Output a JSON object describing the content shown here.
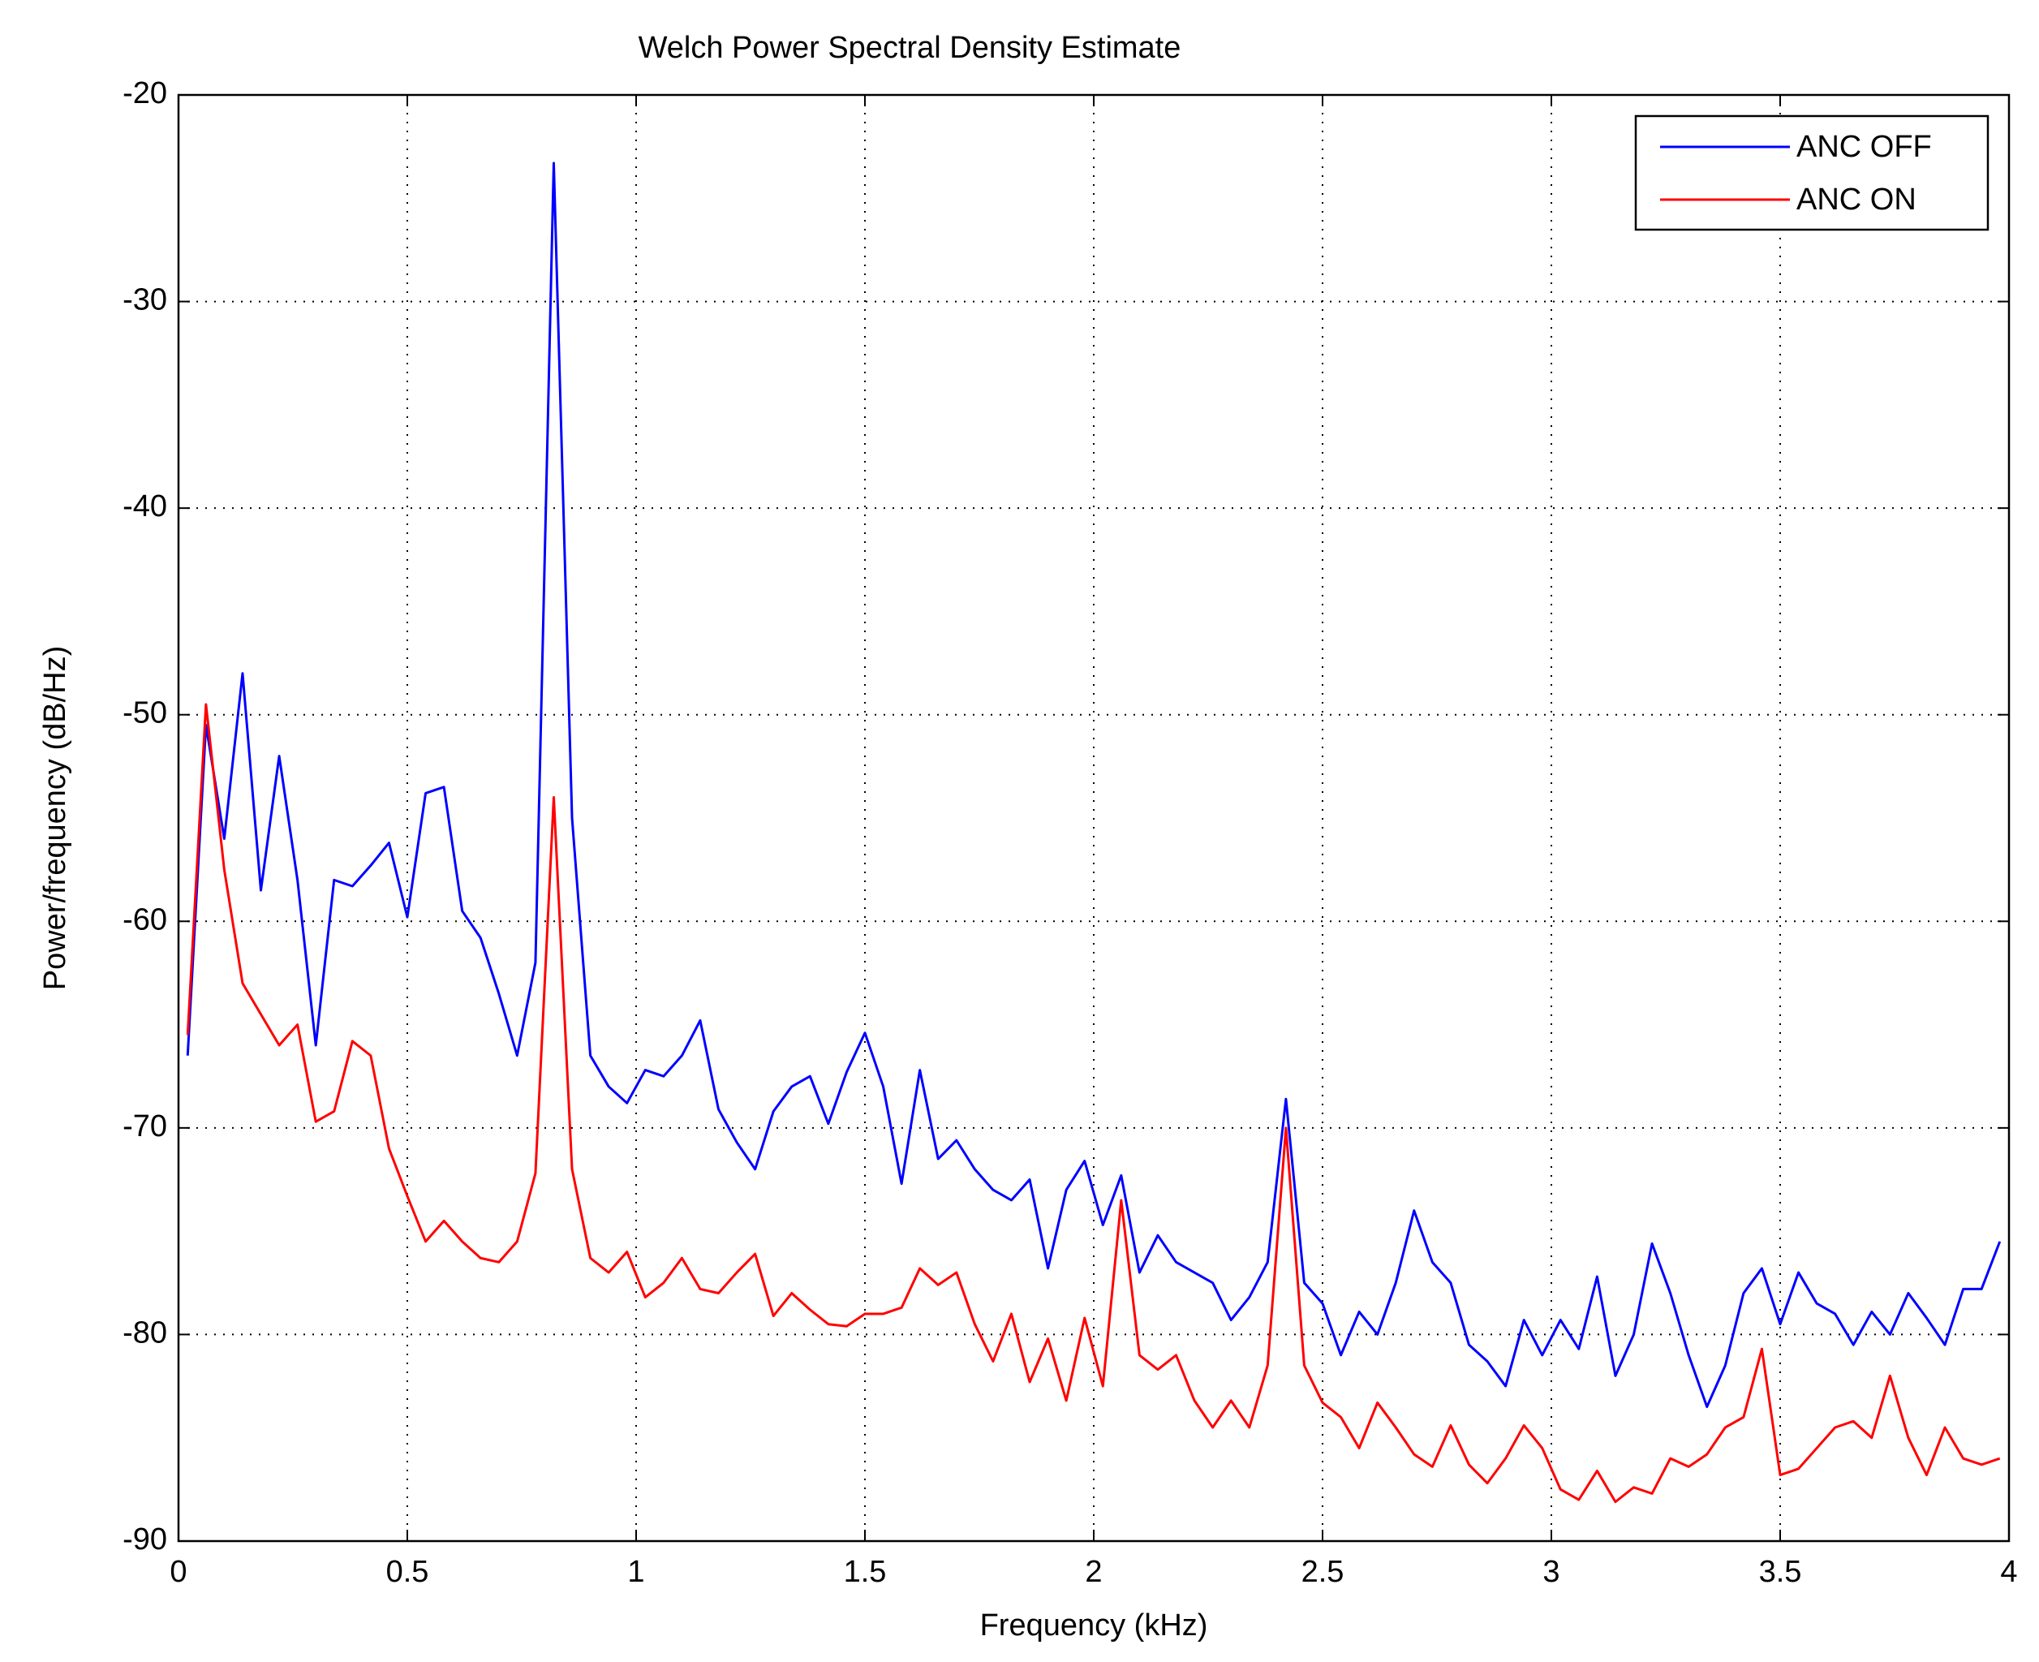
{
  "chart_data": {
    "type": "line",
    "title": "Welch Power Spectral Density Estimate",
    "x_label": "Frequency (kHz)",
    "y_label": "Power/frequency (dB/Hz)",
    "x": [
      0.02,
      0.06,
      0.1,
      0.14,
      0.18,
      0.22,
      0.26,
      0.3,
      0.34,
      0.38,
      0.42,
      0.46,
      0.5,
      0.54,
      0.58,
      0.62,
      0.66,
      0.7,
      0.74,
      0.78,
      0.82,
      0.86,
      0.9,
      0.94,
      0.98,
      1.02,
      1.06,
      1.1,
      1.14,
      1.18,
      1.22,
      1.26,
      1.3,
      1.34,
      1.38,
      1.42,
      1.46,
      1.5,
      1.54,
      1.58,
      1.62,
      1.66,
      1.7,
      1.74,
      1.78,
      1.82,
      1.86,
      1.9,
      1.94,
      1.98,
      2.02,
      2.06,
      2.1,
      2.14,
      2.18,
      2.22,
      2.26,
      2.3,
      2.34,
      2.38,
      2.42,
      2.46,
      2.5,
      2.54,
      2.58,
      2.62,
      2.66,
      2.7,
      2.74,
      2.78,
      2.82,
      2.86,
      2.9,
      2.94,
      2.98,
      3.02,
      3.06,
      3.1,
      3.14,
      3.18,
      3.22,
      3.26,
      3.3,
      3.34,
      3.38,
      3.42,
      3.46,
      3.5,
      3.54,
      3.58,
      3.62,
      3.66,
      3.7,
      3.74,
      3.78,
      3.82,
      3.86,
      3.9,
      3.94,
      3.98
    ],
    "series": [
      {
        "name": "ANC OFF",
        "color": "#0000ff",
        "values": [
          -66.5,
          -50.5,
          -56,
          -48,
          -58.5,
          -52,
          -58,
          -66,
          -58,
          -58.3,
          -57.3,
          -56.2,
          -59.8,
          -53.8,
          -53.5,
          -59.5,
          -60.8,
          -63.5,
          -66.5,
          -62,
          -23.3,
          -55,
          -66.5,
          -68,
          -68.8,
          -67.2,
          -67.5,
          -66.5,
          -64.8,
          -69.1,
          -70.7,
          -72,
          -69.2,
          -68,
          -67.5,
          -69.8,
          -67.3,
          -65.4,
          -68,
          -72.7,
          -67.2,
          -71.5,
          -70.6,
          -72,
          -73,
          -73.5,
          -72.5,
          -76.8,
          -73,
          -71.6,
          -74.7,
          -72.3,
          -77,
          -75.2,
          -76.5,
          -77,
          -77.5,
          -79.3,
          -78.2,
          -76.5,
          -68.6,
          -77.5,
          -78.5,
          -81,
          -78.9,
          -80,
          -77.5,
          -74,
          -76.5,
          -77.5,
          -80.5,
          -81.3,
          -82.5,
          -79.3,
          -81,
          -79.3,
          -80.7,
          -77.2,
          -82,
          -80,
          -75.6,
          -78,
          -81,
          -83.5,
          -81.5,
          -78,
          -76.8,
          -79.5,
          -77,
          -78.5,
          -79,
          -80.5,
          -78.9,
          -80,
          -78,
          -79.2,
          -80.5,
          -77.8,
          -77.8,
          -75.5
        ]
      },
      {
        "name": "ANC ON",
        "color": "#ff0000",
        "values": [
          -65.5,
          -49.5,
          -57.5,
          -63,
          -64.5,
          -66,
          -65,
          -69.7,
          -69.2,
          -65.8,
          -66.5,
          -71,
          -73.3,
          -75.5,
          -74.5,
          -75.5,
          -76.3,
          -76.5,
          -75.5,
          -72.2,
          -54,
          -72,
          -76.3,
          -77,
          -76,
          -78.2,
          -77.5,
          -76.3,
          -77.8,
          -78,
          -77,
          -76.1,
          -79.1,
          -78,
          -78.8,
          -79.5,
          -79.6,
          -79,
          -79,
          -78.7,
          -76.8,
          -77.6,
          -77,
          -79.5,
          -81.3,
          -79,
          -82.3,
          -80.2,
          -83.2,
          -79.2,
          -82.5,
          -73.5,
          -81,
          -81.7,
          -81,
          -83.2,
          -84.5,
          -83.2,
          -84.5,
          -81.5,
          -70,
          -81.5,
          -83.3,
          -84,
          -85.5,
          -83.3,
          -84.5,
          -85.8,
          -86.4,
          -84.4,
          -86.3,
          -87.2,
          -86,
          -84.4,
          -85.5,
          -87.5,
          -88,
          -86.6,
          -88.1,
          -87.4,
          -87.7,
          -86,
          -86.4,
          -85.8,
          -84.5,
          -84,
          -80.7,
          -86.8,
          -86.5,
          -85.5,
          -84.5,
          -84.2,
          -85,
          -82,
          -85,
          -86.8,
          -84.5,
          -86,
          -86.3,
          -86
        ]
      }
    ],
    "xlim": [
      0,
      4
    ],
    "xticks": [
      0,
      0.5,
      1,
      1.5,
      2,
      2.5,
      3,
      3.5,
      4
    ],
    "ylim": [
      -90,
      -20
    ],
    "yticks": [
      -90,
      -80,
      -70,
      -60,
      -50,
      -40,
      -30,
      -20
    ],
    "grid": true,
    "legend": "upper-right"
  }
}
